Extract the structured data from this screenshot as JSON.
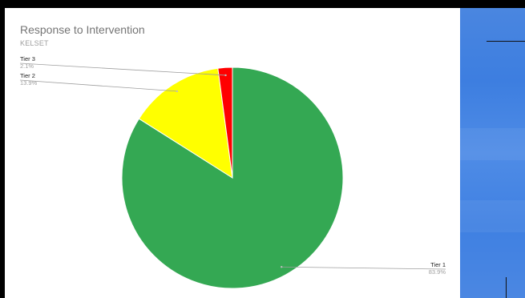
{
  "chart_data": {
    "type": "pie",
    "title": "Response to Intervention",
    "subtitle": "KELSET",
    "slices": [
      {
        "label": "Tier 1",
        "value": 83.9,
        "value_label": "83.9%",
        "color": "#34a853"
      },
      {
        "label": "Tier 2",
        "value": 13.9,
        "value_label": "13.9%",
        "color": "#ffff00"
      },
      {
        "label": "Tier 3",
        "value": 2.1,
        "value_label": "2.1%",
        "color": "#ff0000"
      }
    ],
    "legend": "none",
    "label_style": "leader-lines"
  }
}
